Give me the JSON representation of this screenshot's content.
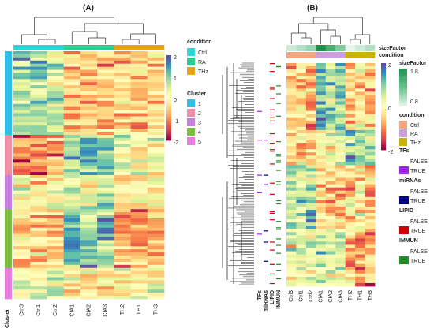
{
  "panels": [
    {
      "label": "(A)"
    },
    {
      "label": "(B)"
    }
  ],
  "colorscale": {
    "ticks": [
      "2",
      "1",
      "0",
      "-1",
      "-2"
    ],
    "colors": [
      "#5e4fa2",
      "#3288bd",
      "#66c2a5",
      "#abdda4",
      "#e6f598",
      "#ffffbf",
      "#fee08b",
      "#fdae61",
      "#f46d43",
      "#d53e4f",
      "#9e0142"
    ]
  },
  "condition_colors": {
    "Ctrl": "#2ed6d6",
    "RA": "#2ecc8f",
    "THz": "#e8a317"
  },
  "condition_colors_b": {
    "Ctrl": "#f4a582",
    "RA": "#c9a0dc",
    "THz": "#c8b400"
  },
  "cluster_colors": {
    "1": "#2fbfe6",
    "2": "#ef8fa8",
    "3": "#c77fe0",
    "4": "#7fbf3f",
    "5": "#e87fe0"
  },
  "sizefactor_colors": [
    "#1a8f4a",
    "#66c28a",
    "#e8f5ec"
  ],
  "bool_colors": {
    "TFs": "#a020f0",
    "miRNAs": "#00008b",
    "LIPID": "#cc0000",
    "IMMUN": "#228b22"
  },
  "legend_a": {
    "condition_title": "condition",
    "condition_items": [
      "Ctrl",
      "RA",
      "THz"
    ],
    "cluster_title": "Cluster",
    "cluster_items": [
      "1",
      "2",
      "3",
      "4",
      "5"
    ]
  },
  "legend_b": {
    "sizefactor_title": "sizeFactor",
    "sizefactor_ticks": [
      "1.8",
      "0.8"
    ],
    "condition_title": "condition",
    "condition_items": [
      "Ctrl",
      "RA",
      "THz"
    ],
    "tfs_title": "TFs",
    "mirnas_title": "miRNAs",
    "lipid_title": "LIPID",
    "immun_title": "IMMUN",
    "false_label": "FALSE",
    "true_label": "TRUE"
  },
  "annotation_labels_b": {
    "size": "sizeFactor",
    "condition": "condition"
  },
  "chart_data": [
    {
      "type": "heatmap",
      "title": "(A)",
      "columns": [
        "Ctrl3",
        "Ctrl1",
        "Ctrl2",
        "CIA1",
        "CIA2",
        "CIA3",
        "TH2",
        "TH1",
        "TH3"
      ],
      "column_condition": [
        "Ctrl",
        "Ctrl",
        "Ctrl",
        "RA",
        "RA",
        "RA",
        "THz",
        "THz",
        "THz"
      ],
      "row_annotation_label": "Cluster",
      "color_range": [
        -2,
        2
      ],
      "row_block_means": [
        {
          "cluster": "1",
          "values": [
            0.8,
            0.9,
            0.7,
            -0.6,
            -0.5,
            -0.7,
            -0.6,
            -0.5,
            -0.4
          ]
        },
        {
          "cluster": "2",
          "values": [
            -1.0,
            -1.1,
            -0.9,
            1.0,
            1.1,
            0.9,
            0.2,
            0.1,
            0.2
          ]
        },
        {
          "cluster": "3",
          "values": [
            -0.2,
            -0.3,
            -0.2,
            0.4,
            0.3,
            0.5,
            -0.3,
            -0.2,
            -0.1
          ]
        },
        {
          "cluster": "4",
          "values": [
            -0.5,
            -0.4,
            -0.6,
            1.2,
            1.0,
            1.1,
            -0.8,
            -0.7,
            -0.6
          ]
        },
        {
          "cluster": "5",
          "values": [
            0.3,
            0.2,
            0.3,
            -0.2,
            -0.1,
            -0.3,
            0.1,
            0.0,
            0.1
          ]
        }
      ]
    },
    {
      "type": "heatmap",
      "title": "(B)",
      "columns": [
        "Ctrl3",
        "Ctrl1",
        "Ctrl2",
        "CIA1",
        "CIA2",
        "CIA3",
        "TH2",
        "TH1",
        "TH3"
      ],
      "column_condition": [
        "Ctrl",
        "Ctrl",
        "Ctrl",
        "RA",
        "RA",
        "RA",
        "THz",
        "THz",
        "THz"
      ],
      "column_sizefactor": [
        0.9,
        1.0,
        1.1,
        1.8,
        1.5,
        1.2,
        0.8,
        0.9,
        1.0
      ],
      "row_annotations": [
        "TFs",
        "miRNAs",
        "LIPID",
        "IMMUN"
      ],
      "color_range": [
        -2,
        2
      ],
      "row_block_means": [
        {
          "values": [
            -0.6,
            -0.5,
            -0.7,
            1.1,
            0.9,
            1.0,
            -0.4,
            -0.3,
            -0.5
          ]
        },
        {
          "values": [
            -0.3,
            -0.4,
            -0.2,
            0.2,
            0.1,
            0.3,
            1.0,
            0.9,
            0.8
          ]
        },
        {
          "values": [
            0.7,
            0.8,
            0.6,
            -0.5,
            -0.4,
            -0.6,
            -0.3,
            -0.2,
            -0.4
          ]
        },
        {
          "values": [
            0.2,
            0.1,
            0.3,
            0.6,
            0.5,
            0.4,
            -0.8,
            -0.9,
            -0.7
          ]
        }
      ]
    }
  ]
}
